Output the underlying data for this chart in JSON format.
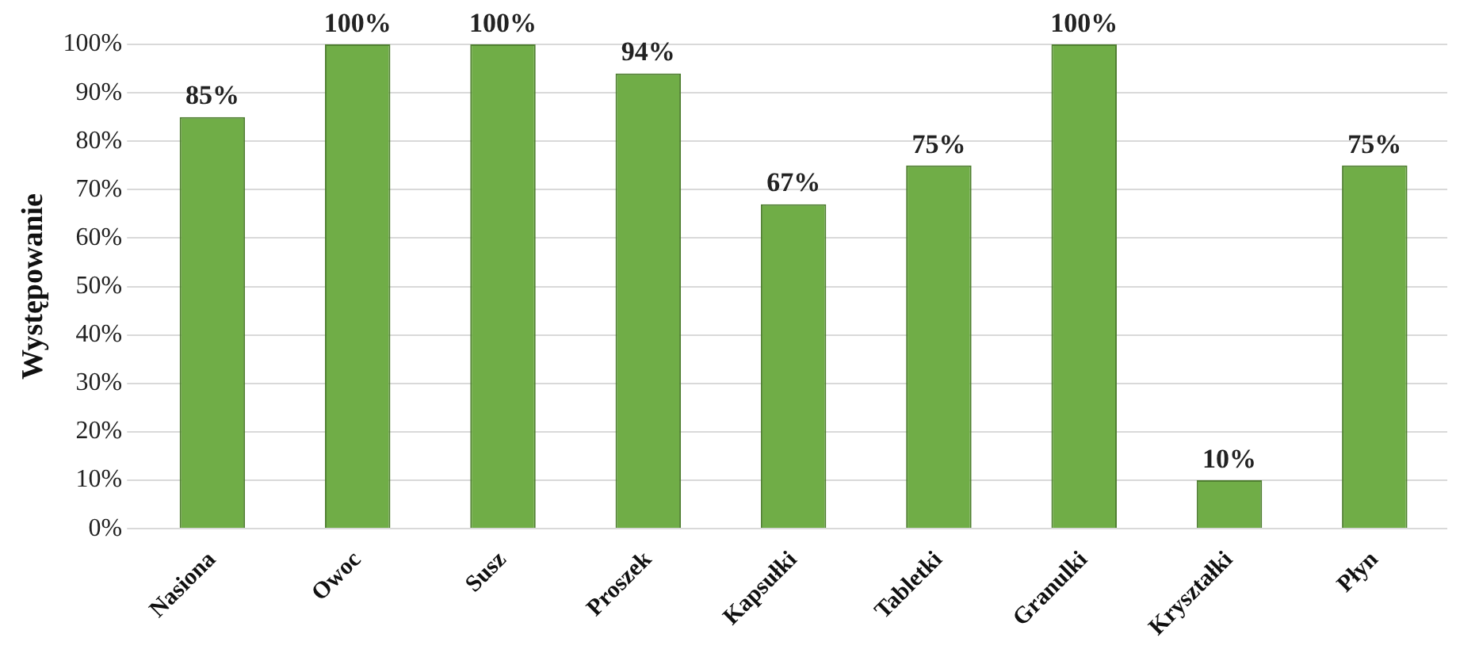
{
  "chart_data": {
    "type": "bar",
    "ylabel": "Występowanie",
    "categories": [
      "Nasiona",
      "Owoc",
      "Susz",
      "Proszek",
      "Kapsułki",
      "Tabletki",
      "Granulki",
      "Kryształki",
      "Płyn"
    ],
    "values": [
      85,
      100,
      100,
      94,
      67,
      75,
      100,
      10,
      75
    ],
    "value_labels": [
      "85%",
      "100%",
      "100%",
      "94%",
      "67%",
      "75%",
      "100%",
      "10%",
      "75%"
    ],
    "color": "#70ad47",
    "ylim": [
      0,
      100
    ],
    "yticks": [
      {
        "value": 0,
        "label": "0%"
      },
      {
        "value": 10,
        "label": "10%"
      },
      {
        "value": 20,
        "label": "20%"
      },
      {
        "value": 30,
        "label": "30%"
      },
      {
        "value": 40,
        "label": "40%"
      },
      {
        "value": 50,
        "label": "50%"
      },
      {
        "value": 60,
        "label": "60%"
      },
      {
        "value": 70,
        "label": "70%"
      },
      {
        "value": 80,
        "label": "80%"
      },
      {
        "value": 90,
        "label": "90%"
      },
      {
        "value": 100,
        "label": "100%"
      }
    ],
    "grid": "y",
    "legend": false
  }
}
